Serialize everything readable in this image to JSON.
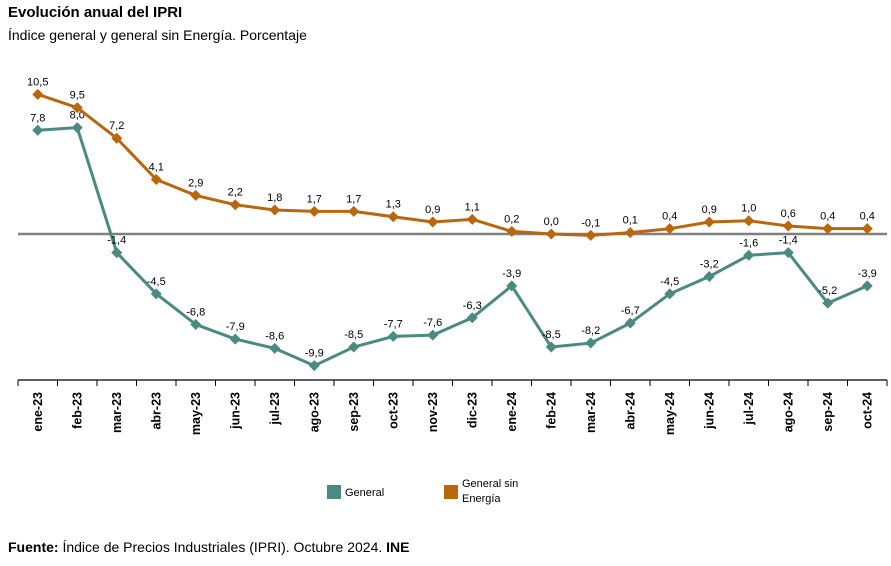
{
  "header": {
    "title": "Evolución anual del IPRI",
    "subtitle": "Índice general y general sin Energía. Porcentaje"
  },
  "footer": {
    "label": "Fuente:",
    "text": " Índice de Precios Industriales (IPRI).  Octubre 2024. ",
    "org": "INE"
  },
  "chart_data": {
    "type": "line",
    "title": "Evolución anual del IPRI",
    "subtitle": "Índice general y general sin Energía. Porcentaje",
    "xlabel": "",
    "ylabel": "",
    "ylim": [
      -12,
      12
    ],
    "categories": [
      "ene-23",
      "feb-23",
      "mar-23",
      "abr-23",
      "may-23",
      "jun-23",
      "jul-23",
      "ago-23",
      "sep-23",
      "oct-23",
      "nov-23",
      "dic-23",
      "ene-24",
      "feb-24",
      "mar-24",
      "abr-24",
      "may-24",
      "jun-24",
      "jul-24",
      "ago-24",
      "sep-24",
      "oct-24"
    ],
    "series": [
      {
        "name": "General",
        "color": "#4a8a80",
        "values": [
          7.8,
          8.0,
          -1.4,
          -4.5,
          -6.8,
          -7.9,
          -8.6,
          -9.9,
          -8.5,
          -7.7,
          -7.6,
          -6.3,
          -3.9,
          -8.5,
          -8.2,
          -6.7,
          -4.5,
          -3.2,
          -1.6,
          -1.4,
          -5.2,
          -3.9
        ],
        "labels": [
          "7,8",
          "8,0",
          "-1,4",
          "-4,5",
          "-6,8",
          "-7,9",
          "-8,6",
          "-9,9",
          "-8,5",
          "-7,7",
          "-7,6",
          "-6,3",
          "-3,9",
          "-8,5",
          "-8,2",
          "-6,7",
          "-4,5",
          "-3,2",
          "-1,6",
          "-1,4",
          "-5,2",
          "-3,9"
        ]
      },
      {
        "name": "General sin Energía",
        "color": "#b9660f",
        "values": [
          10.5,
          9.5,
          7.2,
          4.1,
          2.9,
          2.2,
          1.8,
          1.7,
          1.7,
          1.3,
          0.9,
          1.1,
          0.2,
          0.0,
          -0.1,
          0.1,
          0.4,
          0.9,
          1.0,
          0.6,
          0.4,
          0.4
        ],
        "labels": [
          "10,5",
          "9,5",
          "7,2",
          "4,1",
          "2,9",
          "2,2",
          "1,8",
          "1,7",
          "1,7",
          "1,3",
          "0,9",
          "1,1",
          "0,2",
          "0,0",
          "-0,1",
          "0,1",
          "0,4",
          "0,9",
          "1,0",
          "0,6",
          "0,4",
          "0,4"
        ]
      }
    ],
    "legend": {
      "position": "bottom",
      "items": [
        {
          "name": "General",
          "label_lines": [
            "General"
          ]
        },
        {
          "name": "General sin Energía",
          "label_lines": [
            "General sin",
            "Energía"
          ]
        }
      ]
    },
    "zero_line": true,
    "grid": false
  }
}
